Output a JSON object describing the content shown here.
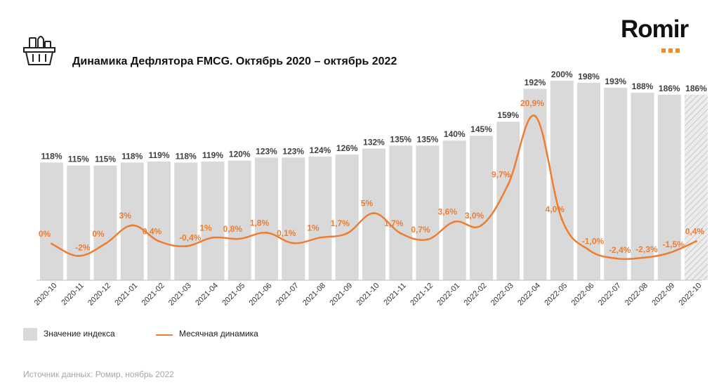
{
  "header": {
    "title": "Динамика Дефлятора FMCG. Октябрь 2020 – октябрь 2022",
    "logo_text": "Romir",
    "icon": "basket-icon"
  },
  "colors": {
    "bar": "#d9d9d9",
    "bar_hatched": "#ebebeb",
    "line": "#ed7d31",
    "bar_label": "#404040",
    "line_label": "#ed7d31",
    "axis": "#bfbfbf",
    "logo_dots": "#f28c1e"
  },
  "legend": {
    "bar_label": "Значение индекса",
    "line_label": "Месячная динамика"
  },
  "source": "Источник данных: Ромир, ноябрь 2022",
  "chart_data": {
    "type": "bar",
    "categories": [
      "2020-10",
      "2020-11",
      "2020-12",
      "2021-01",
      "2021-02",
      "2021-03",
      "2021-04",
      "2021-05",
      "2021-06",
      "2021-07",
      "2021-08",
      "2021-09",
      "2021-10",
      "2021-11",
      "2021-12",
      "2022-01",
      "2022-02",
      "2022-03",
      "2022-04",
      "2022-05",
      "2022-06",
      "2022-07",
      "2022-08",
      "2022-09",
      "2022-10"
    ],
    "series": [
      {
        "name": "Значение индекса",
        "type": "bar",
        "values": [
          118,
          115,
          115,
          118,
          119,
          118,
          119,
          120,
          123,
          123,
          124,
          126,
          132,
          135,
          135,
          140,
          145,
          159,
          192,
          200,
          198,
          193,
          188,
          186,
          186
        ],
        "labels": [
          "118%",
          "115%",
          "115%",
          "118%",
          "119%",
          "118%",
          "119%",
          "120%",
          "123%",
          "123%",
          "124%",
          "126%",
          "132%",
          "135%",
          "135%",
          "140%",
          "145%",
          "159%",
          "192%",
          "200%",
          "198%",
          "193%",
          "188%",
          "186%",
          "186%"
        ],
        "hatched_last": true
      },
      {
        "name": "Месячная динамика",
        "type": "line",
        "values": [
          0,
          -2,
          0,
          3,
          0.4,
          -0.4,
          1,
          0.8,
          1.8,
          0.1,
          1,
          1.7,
          5,
          1.7,
          0.7,
          3.6,
          3.0,
          9.7,
          20.9,
          4.0,
          -1.0,
          -2.4,
          -2.3,
          -1.5,
          0.4
        ],
        "labels": [
          "0%",
          "-2%",
          "0%",
          "3%",
          "0,4%",
          "-0,4%",
          "1%",
          "0,8%",
          "1,8%",
          "0,1%",
          "1%",
          "1,7%",
          "5%",
          "1,7%",
          "0,7%",
          "3,6%",
          "3,0%",
          "9,7%",
          "20,9%",
          "4,0%",
          "-1,0%",
          "-2,4%",
          "-2,3%",
          "-1,5%",
          "0,4%"
        ]
      }
    ],
    "title": "Динамика Дефлятора FMCG. Октябрь 2020 – октябрь 2022",
    "xlabel": "",
    "ylabel": "",
    "legend_position": "bottom-left",
    "grid": false
  }
}
